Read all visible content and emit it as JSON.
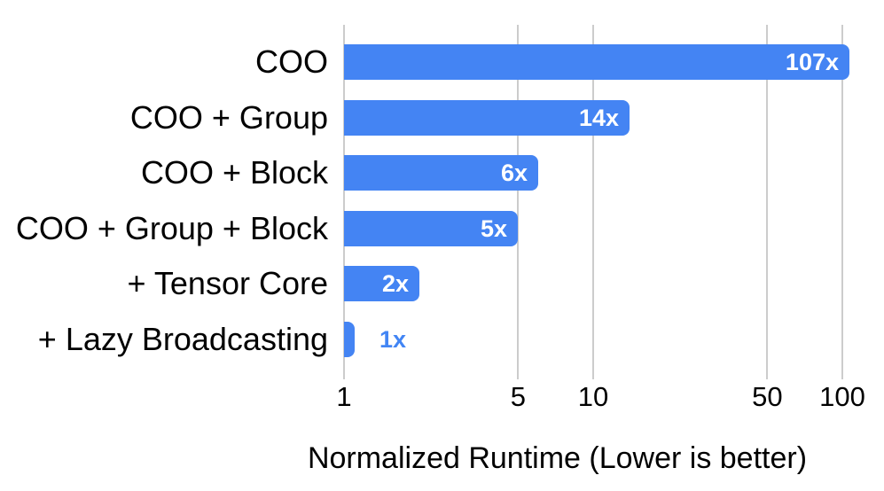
{
  "chart_data": {
    "type": "bar",
    "orientation": "horizontal",
    "x_scale": "log",
    "title": "",
    "xlabel": "Normalized Runtime (Lower is better)",
    "ylabel": "",
    "categories": [
      "COO",
      "COO + Group",
      "COO + Block",
      "COO + Group + Block",
      "+ Tensor Core",
      "+ Lazy Broadcasting"
    ],
    "values": [
      107,
      14,
      6,
      5,
      2,
      1
    ],
    "bar_labels": [
      "107x",
      "14x",
      "6x",
      "5x",
      "2x",
      "1x"
    ],
    "bar_label_position": [
      "inside",
      "inside",
      "inside",
      "inside",
      "inside",
      "outside"
    ],
    "x_ticks": [
      1,
      5,
      10,
      50,
      100
    ],
    "xlim": [
      1,
      128
    ],
    "grid": true,
    "legend": "none",
    "colors": {
      "bar": "#4484f3",
      "bar_label_inside": "#ffffff",
      "bar_label_outside": "#4285f4",
      "gridline": "#cccccc",
      "axis_text": "#000000"
    }
  }
}
